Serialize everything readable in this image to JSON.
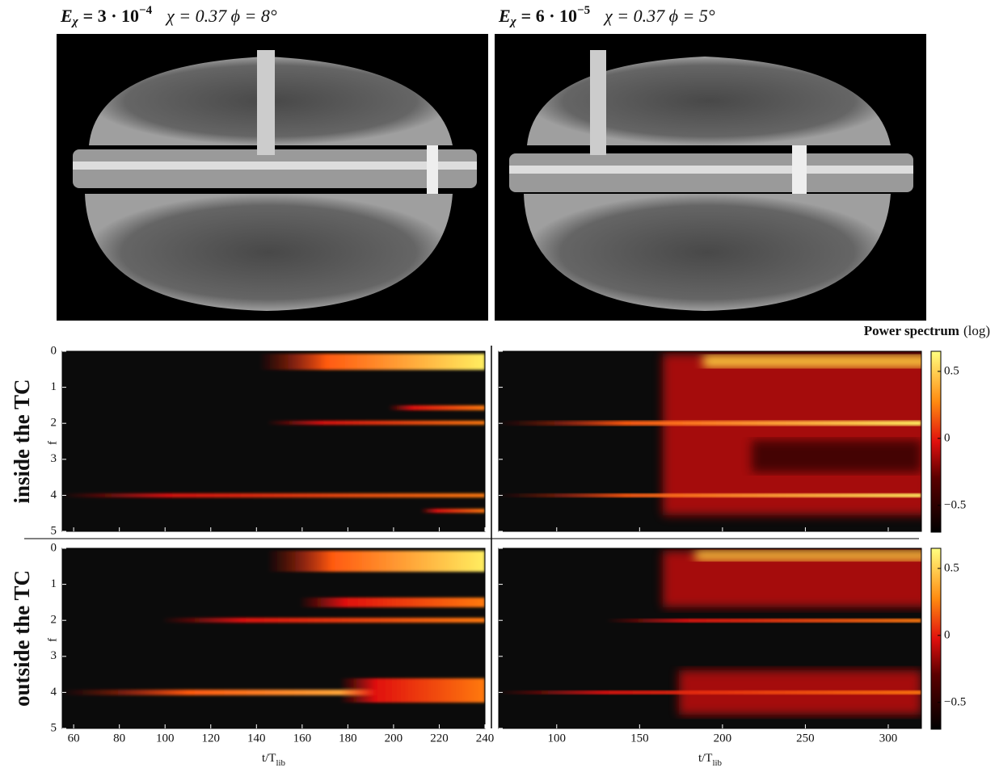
{
  "panels": [
    {
      "title": {
        "lhs": "E",
        "sub": "χ",
        "value": "= 3 · 10",
        "exp": "−4",
        "params": "χ = 0.37   ϕ = 8°"
      }
    },
    {
      "title": {
        "lhs": "E",
        "sub": "χ",
        "value": "= 6 · 10",
        "exp": "−5",
        "params": "χ = 0.37   ϕ = 5°"
      }
    }
  ],
  "spectrograms": {
    "rows": [
      {
        "label": "inside the TC"
      },
      {
        "label": "outside the TC"
      }
    ],
    "y_label": "f",
    "ylim": [
      0,
      5
    ],
    "yticks": [
      0,
      1,
      2,
      3,
      4,
      5
    ],
    "x_label": "t/T",
    "x_label_sub": "lib",
    "columns": [
      {
        "xlim": [
          55,
          240
        ],
        "xticks": [
          60,
          80,
          100,
          120,
          140,
          160,
          180,
          200,
          220,
          240
        ]
      },
      {
        "xlim": [
          65,
          320
        ],
        "xticks": [
          100,
          150,
          200,
          250,
          300
        ]
      }
    ],
    "colorbar": {
      "title": "Power spectrum",
      "unit": "(log)",
      "lim": [
        -0.7,
        0.65
      ],
      "ticks": [
        {
          "value": 0.5,
          "label": "0.5"
        },
        0,
        {
          "value": -0.5,
          "label": "−0.5"
        }
      ]
    }
  }
}
